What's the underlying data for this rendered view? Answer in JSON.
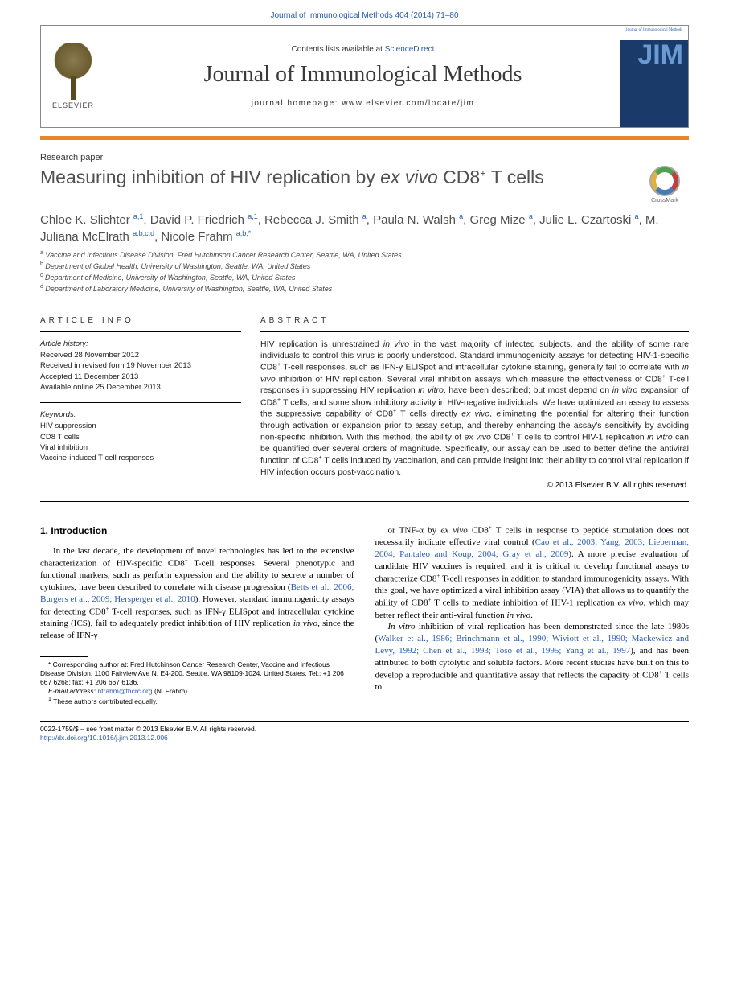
{
  "citation": "Journal of Immunological Methods 404 (2014) 71–80",
  "header": {
    "contents_prefix": "Contents lists available at ",
    "contents_link": "ScienceDirect",
    "journal_name": "Journal of Immunological Methods",
    "homepage_prefix": "journal homepage: ",
    "homepage_url": "www.elsevier.com/locate/jim",
    "publisher": "ELSEVIER",
    "cover_abbrev": "JIM",
    "cover_caption": "Journal of Immunological Methods"
  },
  "section_label": "Research paper",
  "title_html": "Measuring inhibition of HIV replication by <em>ex vivo</em> CD8<sup>+</sup> T cells",
  "crossmark": "CrossMark",
  "authors_html": "Chloe K. Slichter <sup>a,1</sup>, David P. Friedrich <sup>a,1</sup>, Rebecca J. Smith <sup>a</sup>, Paula N. Walsh <sup>a</sup>, Greg Mize <sup>a</sup>, Julie L. Czartoski <sup>a</sup>, M. Juliana McElrath <sup>a,b,c,d</sup>, Nicole Frahm <sup>a,b,*</sup>",
  "affiliations": [
    {
      "sup": "a",
      "text": "Vaccine and Infectious Disease Division, Fred Hutchinson Cancer Research Center, Seattle, WA, United States"
    },
    {
      "sup": "b",
      "text": "Department of Global Health, University of Washington, Seattle, WA, United States"
    },
    {
      "sup": "c",
      "text": "Department of Medicine, University of Washington, Seattle, WA, United States"
    },
    {
      "sup": "d",
      "text": "Department of Laboratory Medicine, University of Washington, Seattle, WA, United States"
    }
  ],
  "article_info": {
    "heading": "article info",
    "history_label": "Article history:",
    "history": [
      "Received 28 November 2012",
      "Received in revised form 19 November 2013",
      "Accepted 11 December 2013",
      "Available online 25 December 2013"
    ],
    "keywords_label": "Keywords:",
    "keywords": [
      "HIV suppression",
      "CD8 T cells",
      "Viral inhibition",
      "Vaccine-induced T-cell responses"
    ]
  },
  "abstract": {
    "heading": "abstract",
    "text_html": "HIV replication is unrestrained <em>in vivo</em> in the vast majority of infected subjects, and the ability of some rare individuals to control this virus is poorly understood. Standard immunogenicity assays for detecting HIV-1-specific CD8<sup>+</sup> T-cell responses, such as IFN-γ ELISpot and intracellular cytokine staining, generally fail to correlate with <em>in vivo</em> inhibition of HIV replication. Several viral inhibition assays, which measure the effectiveness of CD8<sup>+</sup> T-cell responses in suppressing HIV replication <em>in vitro</em>, have been described; but most depend on <em>in vitro</em> expansion of CD8<sup>+</sup> T cells, and some show inhibitory activity in HIV-negative individuals. We have optimized an assay to assess the suppressive capability of CD8<sup>+</sup> T cells directly <em>ex vivo</em>, eliminating the potential for altering their function through activation or expansion prior to assay setup, and thereby enhancing the assay's sensitivity by avoiding non-specific inhibition. With this method, the ability of <em>ex vivo</em> CD8<sup>+</sup> T cells to control HIV-1 replication <em>in vitro</em> can be quantified over several orders of magnitude. Specifically, our assay can be used to better define the antiviral function of CD8<sup>+</sup> T cells induced by vaccination, and can provide insight into their ability to control viral replication if HIV infection occurs post-vaccination.",
    "copyright": "© 2013 Elsevier B.V. All rights reserved."
  },
  "body": {
    "section_heading": "1. Introduction",
    "col1_html": "In the last decade, the development of novel technologies has led to the extensive characterization of HIV-specific CD8<sup>+</sup> T-cell responses. Several phenotypic and functional markers, such as perforin expression and the ability to secrete a number of cytokines, have been described to correlate with disease progression (<a class='ref' href='#'>Betts et al., 2006; Burgers et al., 2009; Hersperger et al., 2010</a>). However, standard immunogenicity assays for detecting CD8<sup>+</sup> T-cell responses, such as IFN-γ ELISpot and intracellular cytokine staining (ICS), fail to adequately predict inhibition of HIV replication <em>in vivo</em>, since the release of IFN-γ",
    "col2_p1_html": "or TNF-α by <em>ex vivo</em> CD8<sup>+</sup> T cells in response to peptide stimulation does not necessarily indicate effective viral control (<a class='ref' href='#'>Cao et al., 2003; Yang, 2003; Lieberman, 2004; Pantaleo and Koup, 2004; Gray et al., 2009</a>). A more precise evaluation of candidate HIV vaccines is required, and it is critical to develop functional assays to characterize CD8<sup>+</sup> T-cell responses in addition to standard immunogenicity assays. With this goal, we have optimized a viral inhibition assay (VIA) that allows us to quantify the ability of CD8<sup>+</sup> T cells to mediate inhibition of HIV-1 replication <em>ex vivo</em>, which may better reflect their anti-viral function <em>in vivo</em>.",
    "col2_p2_html": "<em>In vitro</em> inhibition of viral replication has been demonstrated since the late 1980s (<a class='ref' href='#'>Walker et al., 1986; Brinchmann et al., 1990; Wiviott et al., 1990; Mackewicz and Levy, 1992; Chen et al., 1993; Toso et al., 1995; Yang et al., 1997</a>), and has been attributed to both cytolytic and soluble factors. More recent studies have built on this to develop a reproducible and quantitative assay that reflects the capacity of CD8<sup>+</sup> T cells to"
  },
  "footnotes": {
    "corr_html": "* Corresponding author at: Fred Hutchinson Cancer Research Center, Vaccine and Infectious Disease Division, 1100 Fairview Ave N, E4-200, Seattle, WA 98109-1024, United States. Tel.: +1 206 667 6268; fax: +1 206 667 6136.",
    "email_label": "E-mail address:",
    "email": "nfrahm@fhcrc.org",
    "email_person": "(N. Frahm).",
    "equal": "These authors contributed equally."
  },
  "footer": {
    "line1": "0022-1759/$ – see front matter © 2013 Elsevier B.V. All rights reserved.",
    "doi": "http://dx.doi.org/10.1016/j.jim.2013.12.006"
  },
  "colors": {
    "link": "#2a5caa",
    "orange_bar": "#e8852a",
    "text_gray": "#505050",
    "cover_blue": "#1a3a6a"
  }
}
